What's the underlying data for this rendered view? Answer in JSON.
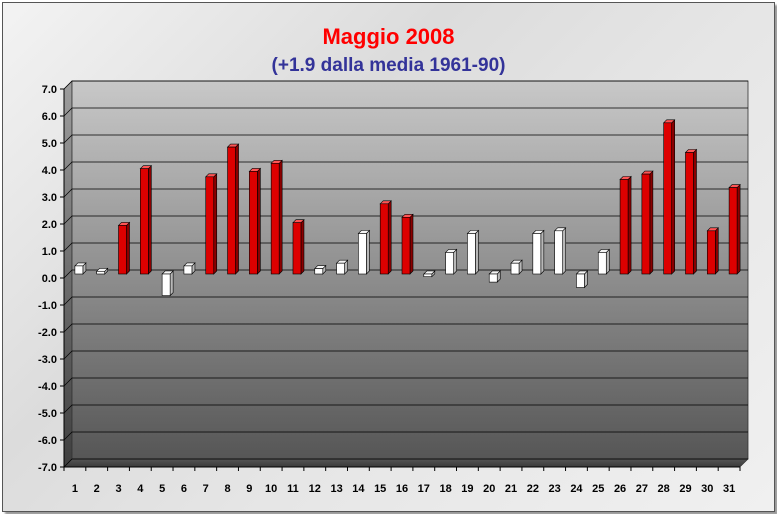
{
  "chart_data": {
    "type": "bar",
    "title": "Maggio 2008",
    "subtitle": "(+1.9 dalla media 1961-90)",
    "xlabel": "",
    "ylabel": "",
    "categories": [
      "1",
      "2",
      "3",
      "4",
      "5",
      "6",
      "7",
      "8",
      "9",
      "10",
      "11",
      "12",
      "13",
      "14",
      "15",
      "16",
      "17",
      "18",
      "19",
      "20",
      "21",
      "22",
      "23",
      "24",
      "25",
      "26",
      "27",
      "28",
      "29",
      "30",
      "31"
    ],
    "values": [
      0.3,
      0.1,
      1.8,
      3.9,
      -0.8,
      0.3,
      3.6,
      4.7,
      3.8,
      4.1,
      1.9,
      0.2,
      0.4,
      1.5,
      2.6,
      2.1,
      -0.1,
      0.8,
      1.5,
      -0.3,
      0.4,
      1.5,
      1.6,
      -0.5,
      0.8,
      3.5,
      3.7,
      5.6,
      4.5,
      1.6,
      3.2
    ],
    "colors": [
      "white",
      "white",
      "red",
      "red",
      "white",
      "white",
      "red",
      "red",
      "red",
      "red",
      "red",
      "white",
      "white",
      "white",
      "red",
      "red",
      "white",
      "white",
      "white",
      "white",
      "white",
      "white",
      "white",
      "white",
      "white",
      "red",
      "red",
      "red",
      "red",
      "red",
      "red"
    ],
    "ylim": [
      -7.0,
      7.0
    ],
    "yticks": [
      "7.0",
      "6.0",
      "5.0",
      "4.0",
      "3.0",
      "2.0",
      "1.0",
      "0.0",
      "-1.0",
      "-2.0",
      "-3.0",
      "-4.0",
      "-5.0",
      "-6.0",
      "-7.0"
    ],
    "grid": true,
    "legend": "none",
    "palette": {
      "red_bar": "#dd0000",
      "white_bar": "#ffffff",
      "title": "#ff0000",
      "subtitle": "#333399",
      "plot_top": "#c8c8c8",
      "plot_bottom": "#585858"
    }
  }
}
